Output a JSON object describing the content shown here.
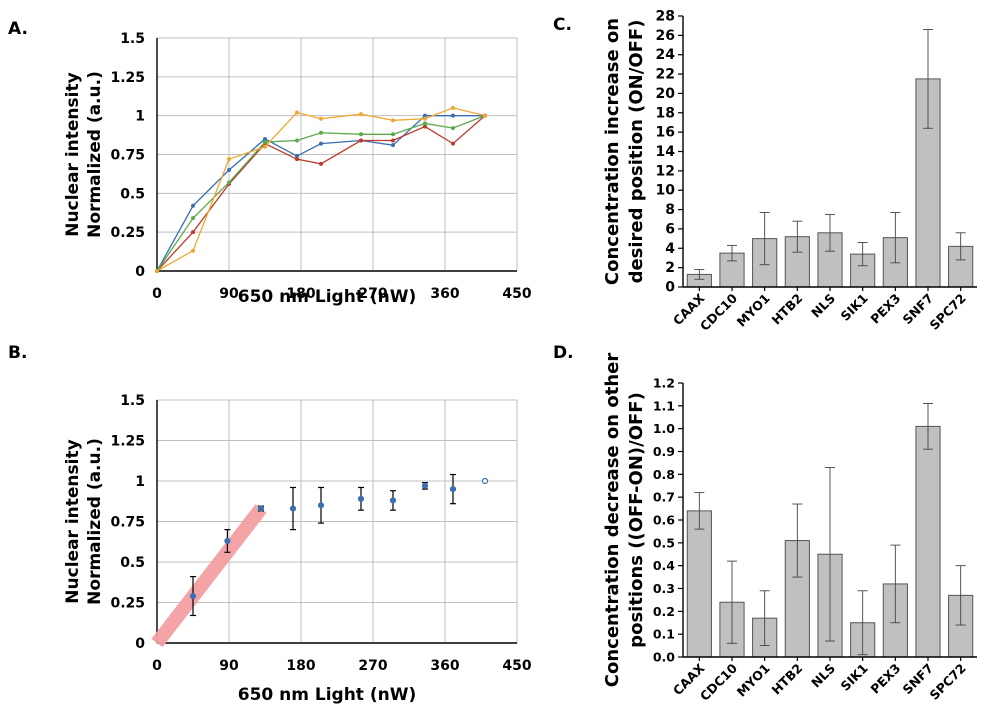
{
  "panels": {
    "A": "A.",
    "B": "B.",
    "C": "C.",
    "D": "D."
  },
  "chart_data": [
    {
      "id": "A",
      "type": "line",
      "xlabel": "650 nm Light (nW)",
      "ylabel_line1": "Nuclear intensity",
      "ylabel_line2": "Normalized (a.u.)",
      "xlim": [
        0,
        450
      ],
      "ylim": [
        0,
        1.5
      ],
      "xticks": [
        "0",
        "90",
        "180",
        "270",
        "360",
        "450"
      ],
      "yticks": [
        "0",
        "0.25",
        "0.5",
        "0.75",
        "1",
        "1.25",
        "1.5"
      ],
      "grid": true,
      "series": [
        {
          "color": "#3a6fb0",
          "x": [
            0,
            45,
            90,
            135,
            175,
            205,
            255,
            295,
            335,
            370,
            410
          ],
          "y": [
            0,
            0.42,
            0.65,
            0.85,
            0.74,
            0.82,
            0.84,
            0.81,
            1.0,
            1.0,
            1.0
          ]
        },
        {
          "color": "#c0392b",
          "x": [
            0,
            45,
            90,
            135,
            175,
            205,
            255,
            295,
            335,
            370,
            410
          ],
          "y": [
            0,
            0.25,
            0.56,
            0.82,
            0.72,
            0.69,
            0.84,
            0.84,
            0.93,
            0.82,
            1.0
          ]
        },
        {
          "color": "#5aaa4a",
          "x": [
            0,
            45,
            90,
            135,
            175,
            205,
            255,
            295,
            335,
            370,
            410
          ],
          "y": [
            0,
            0.34,
            0.57,
            0.83,
            0.84,
            0.89,
            0.88,
            0.88,
            0.95,
            0.92,
            1.0
          ]
        },
        {
          "color": "#f0a830",
          "x": [
            0,
            45,
            90,
            135,
            175,
            205,
            255,
            295,
            335,
            370,
            410
          ],
          "y": [
            0,
            0.13,
            0.72,
            0.8,
            1.02,
            0.98,
            1.01,
            0.97,
            0.98,
            1.05,
            1.0
          ]
        }
      ]
    },
    {
      "id": "B",
      "type": "scatter",
      "xlabel": "650 nm Light (nW)",
      "ylabel_line1": "Nuclear intensity",
      "ylabel_line2": "Normalized (a.u.)",
      "xlim": [
        0,
        450
      ],
      "ylim": [
        0,
        1.5
      ],
      "xticks": [
        "0",
        "90",
        "180",
        "270",
        "360",
        "450"
      ],
      "yticks": [
        "0",
        "0.25",
        "0.5",
        "0.75",
        "1",
        "1.25",
        "1.5"
      ],
      "grid": true,
      "points": [
        {
          "x": 45,
          "y": 0.29,
          "err": 0.12
        },
        {
          "x": 88,
          "y": 0.63,
          "err": 0.07
        },
        {
          "x": 130,
          "y": 0.83,
          "err": 0.015
        },
        {
          "x": 170,
          "y": 0.83,
          "err": 0.13
        },
        {
          "x": 205,
          "y": 0.85,
          "err": 0.11
        },
        {
          "x": 255,
          "y": 0.89,
          "err": 0.07
        },
        {
          "x": 295,
          "y": 0.88,
          "err": 0.06
        },
        {
          "x": 335,
          "y": 0.97,
          "err": 0.02
        },
        {
          "x": 370,
          "y": 0.95,
          "err": 0.09
        },
        {
          "x": 410,
          "y": 1.0,
          "err": 0
        }
      ],
      "trend": {
        "color": "#f4a0a2",
        "x": [
          0,
          130
        ],
        "y": [
          0,
          0.83
        ]
      }
    },
    {
      "id": "C",
      "type": "bar",
      "ylabel_line1": "Concentration increase on",
      "ylabel_line2": "desired position (ON/OFF)",
      "ylim": [
        0,
        28
      ],
      "yticks": [
        "0",
        "2",
        "4",
        "6",
        "8",
        "10",
        "12",
        "14",
        "16",
        "18",
        "20",
        "22",
        "24",
        "26",
        "28"
      ],
      "categories": [
        "CAAX",
        "CDC10",
        "MYO1",
        "HTB2",
        "NLS",
        "SIK1",
        "PEX3",
        "SNF7",
        "SPC72"
      ],
      "values": [
        1.3,
        3.5,
        5.0,
        5.2,
        5.6,
        3.4,
        5.1,
        21.5,
        4.2
      ],
      "errors": [
        0.5,
        0.8,
        2.7,
        1.6,
        1.9,
        1.2,
        2.6,
        5.1,
        1.4
      ],
      "bar_color": "#c0c0c0"
    },
    {
      "id": "D",
      "type": "bar",
      "ylabel_line1": "Concentration decrease on other",
      "ylabel_line2": "positions ((OFF-ON)/OFF)",
      "ylim": [
        0,
        1.2
      ],
      "yticks": [
        "0.0",
        "0.1",
        "0.2",
        "0.3",
        "0.4",
        "0.5",
        "0.6",
        "0.7",
        "0.8",
        "0.9",
        "1.0",
        "1.1",
        "1.2"
      ],
      "categories": [
        "CAAX",
        "CDC10",
        "MYO1",
        "HTB2",
        "NLS",
        "SIK1",
        "PEX3",
        "SNF7",
        "SPC72"
      ],
      "values": [
        0.64,
        0.24,
        0.17,
        0.51,
        0.45,
        0.15,
        0.32,
        1.01,
        0.27
      ],
      "errors": [
        0.08,
        0.18,
        0.12,
        0.16,
        0.38,
        0.14,
        0.17,
        0.1,
        0.13
      ],
      "bar_color": "#c0c0c0"
    }
  ]
}
